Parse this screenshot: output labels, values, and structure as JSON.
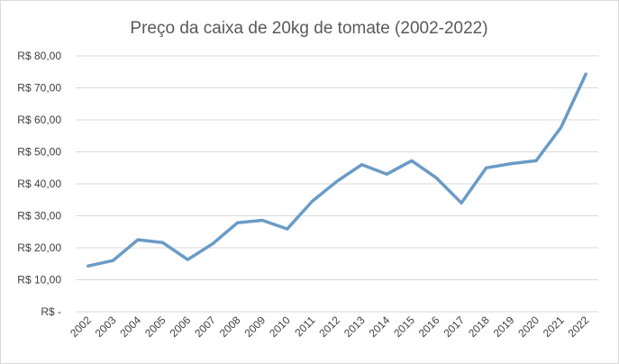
{
  "chart_data": {
    "type": "line",
    "title": "Preço da caixa de 20kg de tomate (2002-2022)",
    "xlabel": "",
    "ylabel": "",
    "categories": [
      "2002",
      "2003",
      "2004",
      "2005",
      "2006",
      "2007",
      "2008",
      "2009",
      "2010",
      "2011",
      "2012",
      "2013",
      "2014",
      "2015",
      "2016",
      "2017",
      "2018",
      "2019",
      "2020",
      "2021",
      "2022"
    ],
    "series": [
      {
        "values": [
          14.3,
          16.0,
          22.5,
          21.6,
          16.3,
          21.2,
          27.8,
          28.6,
          25.9,
          34.5,
          40.8,
          46.0,
          43.0,
          47.2,
          41.8,
          34.0,
          45.0,
          46.3,
          47.2,
          57.6,
          74.3
        ],
        "color": "#6a9bc6"
      }
    ],
    "ylim": [
      0,
      80
    ],
    "y_ticks": [
      {
        "value": 0,
        "label": "R$ -"
      },
      {
        "value": 10,
        "label": "R$ 10,00"
      },
      {
        "value": 20,
        "label": "R$ 20,00"
      },
      {
        "value": 30,
        "label": "R$ 30,00"
      },
      {
        "value": 40,
        "label": "R$ 40,00"
      },
      {
        "value": 50,
        "label": "R$ 50,00"
      },
      {
        "value": 60,
        "label": "R$ 60,00"
      },
      {
        "value": 70,
        "label": "R$ 70,00"
      },
      {
        "value": 80,
        "label": "R$ 80,00"
      }
    ],
    "grid": true,
    "x_tick_rotation": "rotated -45 degrees",
    "legend": "none"
  }
}
